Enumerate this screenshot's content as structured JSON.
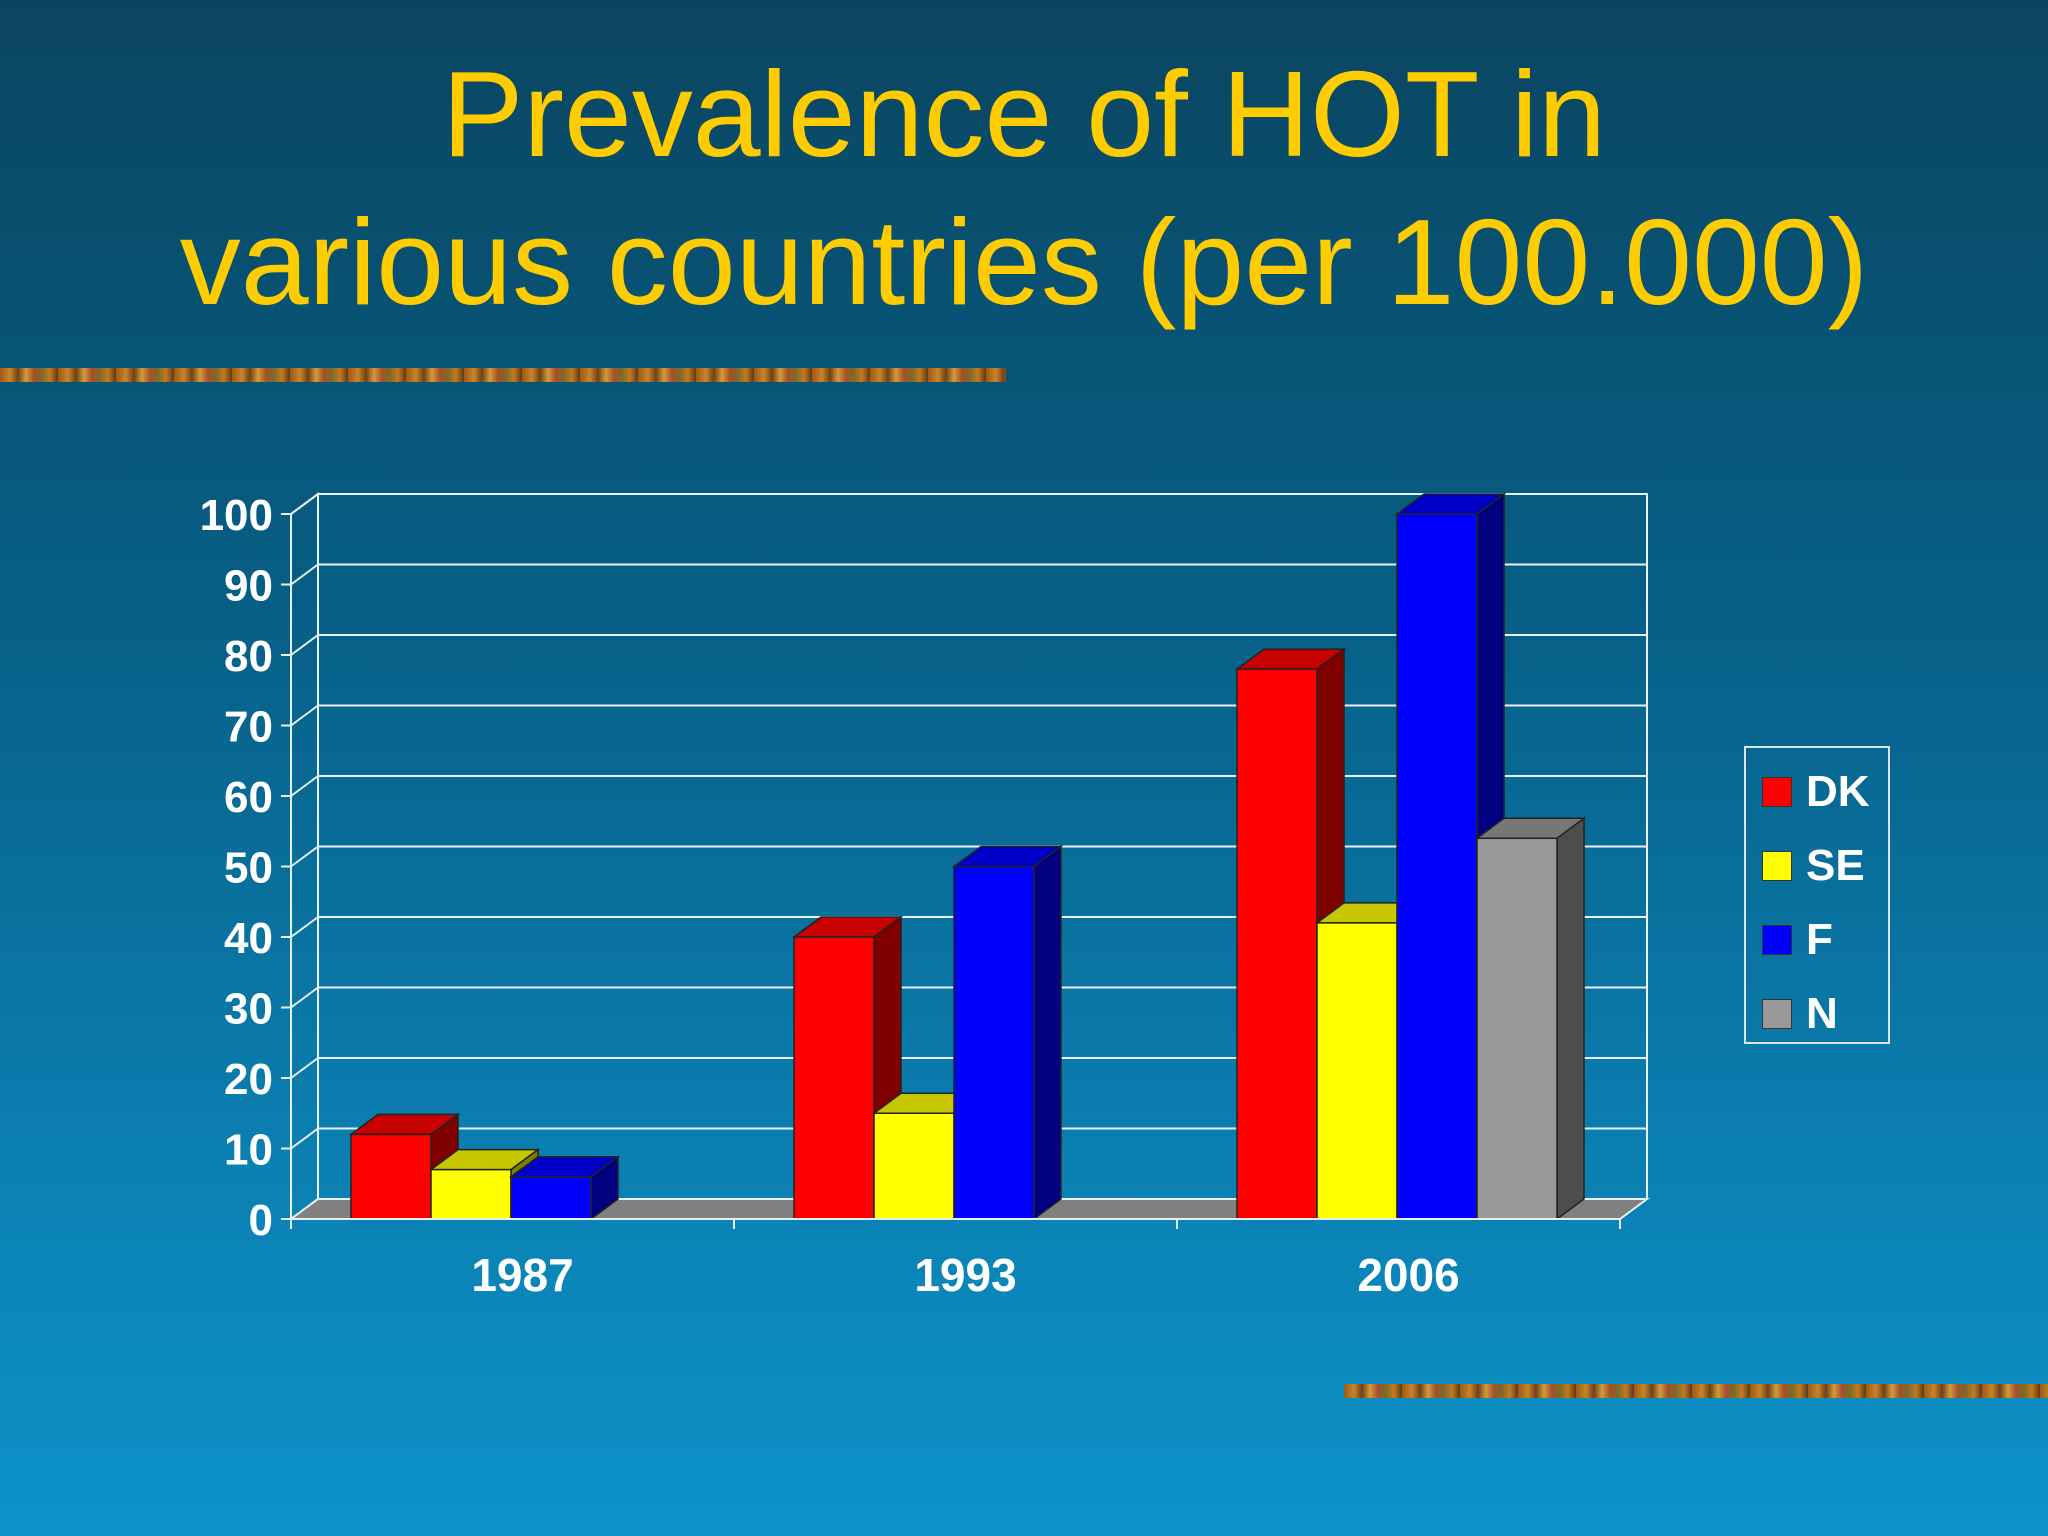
{
  "title": {
    "line1": "Prevalence of HOT in",
    "line2": "various countries (per 100.000)"
  },
  "colors": {
    "title": "#ffcc00",
    "axis_text": "#ffffff",
    "DK": "#ff0000",
    "SE": "#ffff00",
    "F": "#0000ff",
    "N": "#999999"
  },
  "chart_data": {
    "type": "bar",
    "style": "3d-clustered",
    "title": "Prevalence of HOT in various countries (per 100.000)",
    "categories": [
      "1987",
      "1993",
      "2006"
    ],
    "series": [
      {
        "name": "DK",
        "values": [
          12,
          40,
          78
        ]
      },
      {
        "name": "SE",
        "values": [
          7,
          15,
          42
        ]
      },
      {
        "name": "F",
        "values": [
          6,
          50,
          100
        ]
      },
      {
        "name": "N",
        "values": [
          null,
          null,
          54
        ]
      }
    ],
    "ylim": [
      0,
      100
    ],
    "yticks": [
      0,
      10,
      20,
      30,
      40,
      50,
      60,
      70,
      80,
      90,
      100
    ],
    "xlabel": "",
    "ylabel": "",
    "grid": true,
    "legend": "right"
  }
}
